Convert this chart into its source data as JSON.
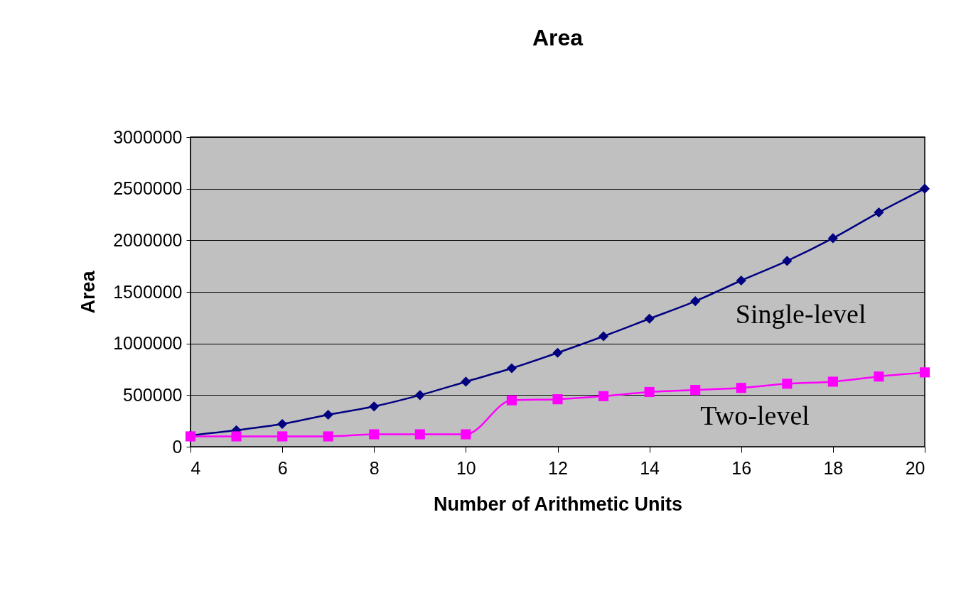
{
  "chart_data": {
    "type": "line",
    "title": "Area",
    "xlabel": "Number of Arithmetic Units",
    "ylabel": "Area",
    "x": [
      4,
      5,
      6,
      7,
      8,
      9,
      10,
      11,
      12,
      13,
      14,
      15,
      16,
      17,
      18,
      19,
      20
    ],
    "series": [
      {
        "name": "Single-level",
        "color": "#000080",
        "marker": "diamond",
        "values": [
          110000,
          160000,
          220000,
          310000,
          390000,
          500000,
          630000,
          760000,
          910000,
          1070000,
          1240000,
          1410000,
          1610000,
          1800000,
          2020000,
          2270000,
          2500000
        ]
      },
      {
        "name": "Two-level",
        "color": "#ff00ff",
        "marker": "square",
        "values": [
          100000,
          100000,
          100000,
          100000,
          120000,
          120000,
          120000,
          450000,
          460000,
          490000,
          530000,
          550000,
          570000,
          610000,
          630000,
          680000,
          720000
        ]
      }
    ],
    "xlim": [
      4,
      20
    ],
    "xticks": [
      4,
      6,
      8,
      10,
      12,
      14,
      16,
      18,
      20
    ],
    "ylim": [
      0,
      3000000
    ],
    "yticks": [
      0,
      500000,
      1000000,
      1500000,
      2000000,
      2500000,
      3000000
    ],
    "grid": "y",
    "legend": false,
    "line_style": "solid"
  }
}
